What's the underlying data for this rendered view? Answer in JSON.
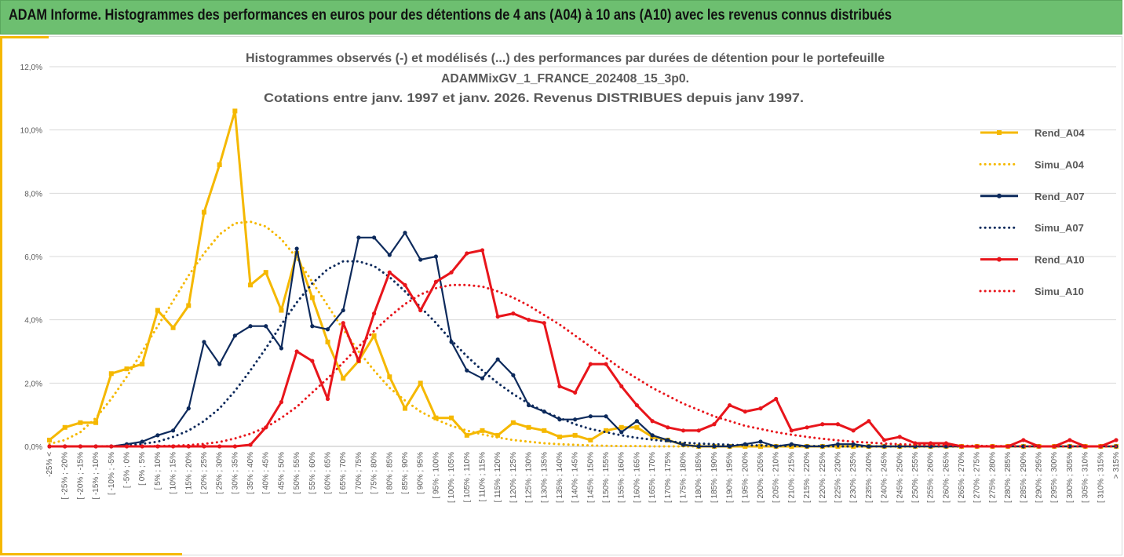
{
  "banner": {
    "title": "ADAM Informe. Histogrammes des performances en euros pour des détentions de 4 ans (A04) à 10 ans (A10) avec les revenus connus distribués"
  },
  "colors": {
    "banner": "#6dbf70",
    "accent": "#f5b800",
    "a04": "#f5b800",
    "a07": "#0d2a5c",
    "a10": "#e8151b",
    "gridline": "#d9d9d9",
    "text": "#595959"
  },
  "chart_data": {
    "type": "line",
    "title": [
      "Histogrammes observés (-) et modélisés (...) des performances par durées de détention pour le portefeuille",
      "ADAMMixGV_1_FRANCE_202408_15_3p0.",
      "Cotations entre janv. 1997 et janv. 2026. Revenus DISTRIBUES depuis janv 1997."
    ],
    "xlabel": "",
    "ylabel": "",
    "ylim": [
      0,
      12
    ],
    "yticks": [
      "0,0%",
      "2,0%",
      "4,0%",
      "6,0%",
      "8,0%",
      "10,0%",
      "12,0%"
    ],
    "grid": "horizontal",
    "legend_position": "right",
    "categories": [
      "-25% <",
      "[ -25% ; -20%",
      "[ -20% ; -15%",
      "[ -15% ; -10%",
      "[ -10% ; -5%",
      "[ -5% ; 0%",
      "[ 0% ; 5%",
      "[ 5% ; 10%",
      "[ 10% ; 15%",
      "[ 15% ; 20%",
      "[ 20% ; 25%",
      "[ 25% ; 30%",
      "[ 30% ; 35%",
      "[ 35% ; 40%",
      "[ 40% ; 45%",
      "[ 45% ; 50%",
      "[ 50% ; 55%",
      "[ 55% ; 60%",
      "[ 60% ; 65%",
      "[ 65% ; 70%",
      "[ 70% ; 75%",
      "[ 75% ; 80%",
      "[ 80% ; 85%",
      "[ 85% ; 90%",
      "[ 90% ; 95%",
      "[ 95% ; 100%",
      "[ 100% ; 105%",
      "[ 105% ; 110%",
      "[ 110% ; 115%",
      "[ 115% ; 120%",
      "[ 120% ; 125%",
      "[ 125% ; 130%",
      "[ 130% ; 135%",
      "[ 135% ; 140%",
      "[ 140% ; 145%",
      "[ 145% ; 150%",
      "[ 150% ; 155%",
      "[ 155% ; 160%",
      "[ 160% ; 165%",
      "[ 165% ; 170%",
      "[ 170% ; 175%",
      "[ 175% ; 180%",
      "[ 180% ; 185%",
      "[ 185% ; 190%",
      "[ 190% ; 195%",
      "[ 195% ; 200%",
      "[ 200% ; 205%",
      "[ 205% ; 210%",
      "[ 210% ; 215%",
      "[ 215% ; 220%",
      "[ 220% ; 225%",
      "[ 225% ; 230%",
      "[ 230% ; 235%",
      "[ 235% ; 240%",
      "[ 240% ; 245%",
      "[ 245% ; 250%",
      "[ 250% ; 255%",
      "[ 255% ; 260%",
      "[ 260% ; 265%",
      "[ 265% ; 270%",
      "[ 270% ; 275%",
      "[ 275% ; 280%",
      "[ 280% ; 285%",
      "[ 285% ; 290%",
      "[ 290% ; 295%",
      "[ 295% ; 300%",
      "[ 300% ; 305%",
      "[ 305% ; 310%",
      "[ 310% ; 315%",
      "> 315%"
    ],
    "series": [
      {
        "name": "Rend_A04",
        "style": "solid",
        "marker": "square",
        "color": "#f5b800",
        "values": [
          0.2,
          0.6,
          0.75,
          0.75,
          2.3,
          2.45,
          2.6,
          4.3,
          3.75,
          4.45,
          7.4,
          8.9,
          10.6,
          5.1,
          5.5,
          4.3,
          6.1,
          4.7,
          3.3,
          2.15,
          2.7,
          3.5,
          2.2,
          1.2,
          2.0,
          0.9,
          0.9,
          0.35,
          0.5,
          0.35,
          0.75,
          0.6,
          0.5,
          0.3,
          0.35,
          0.2,
          0.5,
          0.6,
          0.6,
          0.3,
          0.2,
          0.05,
          0.0,
          0.0,
          0.0,
          0.0,
          0.0,
          0.0,
          0.0,
          0.0,
          0.0,
          0.0,
          0.0,
          0.0,
          0.0,
          0.0,
          0.0,
          0.0,
          0.0,
          0.0,
          0.0,
          0.0,
          0.0,
          0.0,
          0.0,
          0.0,
          0.0,
          0.0,
          0.0,
          0.0
        ]
      },
      {
        "name": "Simu_A04",
        "style": "dotted",
        "marker": "none",
        "color": "#f5b800",
        "values": [
          0.08,
          0.2,
          0.45,
          0.9,
          1.5,
          2.2,
          3.0,
          3.8,
          4.6,
          5.4,
          6.1,
          6.7,
          7.05,
          7.1,
          6.95,
          6.55,
          5.95,
          5.2,
          4.45,
          3.7,
          3.0,
          2.4,
          1.85,
          1.45,
          1.1,
          0.85,
          0.65,
          0.5,
          0.38,
          0.28,
          0.2,
          0.15,
          0.1,
          0.07,
          0.05,
          0.03,
          0.02,
          0.01,
          0.01,
          0.0,
          0.0,
          0.0,
          0.0,
          0.0,
          0.0,
          0.0,
          0.0,
          0.0,
          0.0,
          0.0,
          0.0,
          0.0,
          0.0,
          0.0,
          0.0,
          0.0,
          0.0,
          0.0,
          0.0,
          0.0,
          0.0,
          0.0,
          0.0,
          0.0,
          0.0,
          0.0,
          0.0,
          0.0,
          0.0,
          0.0
        ]
      },
      {
        "name": "Rend_A07",
        "style": "solid",
        "marker": "circle",
        "color": "#0d2a5c",
        "values": [
          0.0,
          0.0,
          0.0,
          0.0,
          0.0,
          0.07,
          0.15,
          0.35,
          0.5,
          1.2,
          3.3,
          2.6,
          3.5,
          3.8,
          3.8,
          3.1,
          6.25,
          3.8,
          3.7,
          4.3,
          6.6,
          6.6,
          6.05,
          6.75,
          5.9,
          6.0,
          3.3,
          2.4,
          2.15,
          2.75,
          2.25,
          1.3,
          1.1,
          0.85,
          0.85,
          0.95,
          0.95,
          0.45,
          0.8,
          0.35,
          0.2,
          0.05,
          0.0,
          0.0,
          0.0,
          0.07,
          0.15,
          0.0,
          0.07,
          0.0,
          0.0,
          0.07,
          0.07,
          0.0,
          0.0,
          0.0,
          0.0,
          0.0,
          0.0,
          0.0,
          0.0,
          0.0,
          0.0,
          0.0,
          0.0,
          0.0,
          0.0,
          0.0,
          0.0,
          0.0
        ]
      },
      {
        "name": "Simu_A07",
        "style": "dotted",
        "marker": "none",
        "color": "#0d2a5c",
        "values": [
          0.0,
          0.0,
          0.0,
          0.0,
          0.01,
          0.03,
          0.08,
          0.15,
          0.3,
          0.5,
          0.8,
          1.2,
          1.75,
          2.4,
          3.1,
          3.85,
          4.55,
          5.15,
          5.6,
          5.85,
          5.85,
          5.7,
          5.35,
          4.9,
          4.4,
          3.9,
          3.35,
          2.85,
          2.4,
          2.0,
          1.65,
          1.35,
          1.1,
          0.9,
          0.7,
          0.55,
          0.45,
          0.35,
          0.27,
          0.21,
          0.16,
          0.12,
          0.09,
          0.07,
          0.05,
          0.04,
          0.03,
          0.02,
          0.015,
          0.01,
          0.01,
          0.0,
          0.0,
          0.0,
          0.0,
          0.0,
          0.0,
          0.0,
          0.0,
          0.0,
          0.0,
          0.0,
          0.0,
          0.0,
          0.0,
          0.0,
          0.0,
          0.0,
          0.0,
          0.0
        ]
      },
      {
        "name": "Rend_A10",
        "style": "solid",
        "marker": "circle",
        "color": "#e8151b",
        "values": [
          0.0,
          0.0,
          0.0,
          0.0,
          0.0,
          0.0,
          0.0,
          0.0,
          0.0,
          0.0,
          0.0,
          0.0,
          0.0,
          0.05,
          0.6,
          1.4,
          3.0,
          2.7,
          1.5,
          3.9,
          2.7,
          4.2,
          5.5,
          5.1,
          4.3,
          5.2,
          5.5,
          6.1,
          6.2,
          4.1,
          4.2,
          4.0,
          3.9,
          1.9,
          1.7,
          2.6,
          2.6,
          1.9,
          1.3,
          0.8,
          0.6,
          0.5,
          0.5,
          0.7,
          1.3,
          1.1,
          1.2,
          1.5,
          0.5,
          0.6,
          0.7,
          0.7,
          0.5,
          0.8,
          0.2,
          0.3,
          0.1,
          0.1,
          0.1,
          0.0,
          0.0,
          0.0,
          0.0,
          0.2,
          0.0,
          0.0,
          0.2,
          0.0,
          0.0,
          0.2
        ]
      },
      {
        "name": "Simu_A10",
        "style": "dotted",
        "marker": "none",
        "color": "#e8151b",
        "values": [
          0.0,
          0.0,
          0.0,
          0.0,
          0.0,
          0.0,
          0.0,
          0.01,
          0.02,
          0.04,
          0.08,
          0.14,
          0.25,
          0.4,
          0.6,
          0.9,
          1.25,
          1.7,
          2.15,
          2.65,
          3.15,
          3.65,
          4.1,
          4.5,
          4.8,
          5.0,
          5.1,
          5.1,
          5.05,
          4.9,
          4.7,
          4.45,
          4.15,
          3.85,
          3.5,
          3.15,
          2.8,
          2.45,
          2.15,
          1.85,
          1.6,
          1.35,
          1.15,
          0.95,
          0.8,
          0.65,
          0.55,
          0.45,
          0.37,
          0.3,
          0.24,
          0.19,
          0.15,
          0.12,
          0.09,
          0.07,
          0.05,
          0.04,
          0.03,
          0.02,
          0.02,
          0.01,
          0.01,
          0.0,
          0.0,
          0.0,
          0.0,
          0.0,
          0.0,
          0.0
        ]
      }
    ]
  }
}
